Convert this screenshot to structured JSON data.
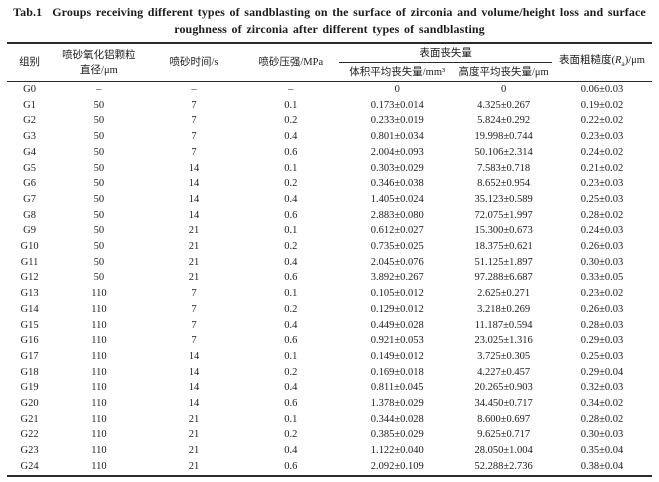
{
  "title": {
    "tab_label": "Tab.1",
    "line1": "Groups receiving different types of sandblasting on the surface of zirconia and volume/height loss and surface",
    "line2": "roughness of zirconia after different types of sandblasting"
  },
  "table": {
    "header": {
      "group": "组别",
      "particle_line1": "喷砂氧化铝颗粒",
      "particle_line2": "直径/μm",
      "time": "喷砂时间/s",
      "pressure": "喷砂压强/MPa",
      "surface_loss": "表面丧失量",
      "volume_loss": "体积平均丧失量/mm³",
      "height_loss": "高度平均丧失量/μm",
      "roughness_prefix": "表面粗糙度(",
      "roughness_symbol": "R",
      "roughness_sub": "a",
      "roughness_suffix": ")/μm"
    },
    "rows": [
      [
        "G0",
        "–",
        "–",
        "–",
        "0",
        "0",
        "0.06±0.03"
      ],
      [
        "G1",
        "50",
        "7",
        "0.1",
        "0.173±0.014",
        "4.325±0.267",
        "0.19±0.02"
      ],
      [
        "G2",
        "50",
        "7",
        "0.2",
        "0.233±0.019",
        "5.824±0.292",
        "0.22±0.02"
      ],
      [
        "G3",
        "50",
        "7",
        "0.4",
        "0.801±0.034",
        "19.998±0.744",
        "0.23±0.03"
      ],
      [
        "G4",
        "50",
        "7",
        "0.6",
        "2.004±0.093",
        "50.106±2.314",
        "0.24±0.02"
      ],
      [
        "G5",
        "50",
        "14",
        "0.1",
        "0.303±0.029",
        "7.583±0.718",
        "0.21±0.02"
      ],
      [
        "G6",
        "50",
        "14",
        "0.2",
        "0.346±0.038",
        "8.652±0.954",
        "0.23±0.03"
      ],
      [
        "G7",
        "50",
        "14",
        "0.4",
        "1.405±0.024",
        "35.123±0.589",
        "0.25±0.03"
      ],
      [
        "G8",
        "50",
        "14",
        "0.6",
        "2.883±0.080",
        "72.075±1.997",
        "0.28±0.02"
      ],
      [
        "G9",
        "50",
        "21",
        "0.1",
        "0.612±0.027",
        "15.300±0.673",
        "0.24±0.03"
      ],
      [
        "G10",
        "50",
        "21",
        "0.2",
        "0.735±0.025",
        "18.375±0.621",
        "0.26±0.03"
      ],
      [
        "G11",
        "50",
        "21",
        "0.4",
        "2.045±0.076",
        "51.125±1.897",
        "0.30±0.03"
      ],
      [
        "G12",
        "50",
        "21",
        "0.6",
        "3.892±0.267",
        "97.288±6.687",
        "0.33±0.05"
      ],
      [
        "G13",
        "110",
        "7",
        "0.1",
        "0.105±0.012",
        "2.625±0.271",
        "0.23±0.02"
      ],
      [
        "G14",
        "110",
        "7",
        "0.2",
        "0.129±0.012",
        "3.218±0.269",
        "0.26±0.03"
      ],
      [
        "G15",
        "110",
        "7",
        "0.4",
        "0.449±0.028",
        "11.187±0.594",
        "0.28±0.03"
      ],
      [
        "G16",
        "110",
        "7",
        "0.6",
        "0.921±0.053",
        "23.025±1.316",
        "0.29±0.03"
      ],
      [
        "G17",
        "110",
        "14",
        "0.1",
        "0.149±0.012",
        "3.725±0.305",
        "0.25±0.03"
      ],
      [
        "G18",
        "110",
        "14",
        "0.2",
        "0.169±0.018",
        "4.227±0.457",
        "0.29±0.04"
      ],
      [
        "G19",
        "110",
        "14",
        "0.4",
        "0.811±0.045",
        "20.265±0.903",
        "0.32±0.03"
      ],
      [
        "G20",
        "110",
        "14",
        "0.6",
        "1.378±0.029",
        "34.450±0.717",
        "0.34±0.02"
      ],
      [
        "G21",
        "110",
        "21",
        "0.1",
        "0.344±0.028",
        "8.600±0.697",
        "0.28±0.02"
      ],
      [
        "G22",
        "110",
        "21",
        "0.2",
        "0.385±0.029",
        "9.625±0.717",
        "0.30±0.03"
      ],
      [
        "G23",
        "110",
        "21",
        "0.4",
        "1.122±0.040",
        "28.050±1.004",
        "0.35±0.04"
      ],
      [
        "G24",
        "110",
        "21",
        "0.6",
        "2.092±0.109",
        "52.288±2.736",
        "0.38±0.04"
      ]
    ]
  }
}
